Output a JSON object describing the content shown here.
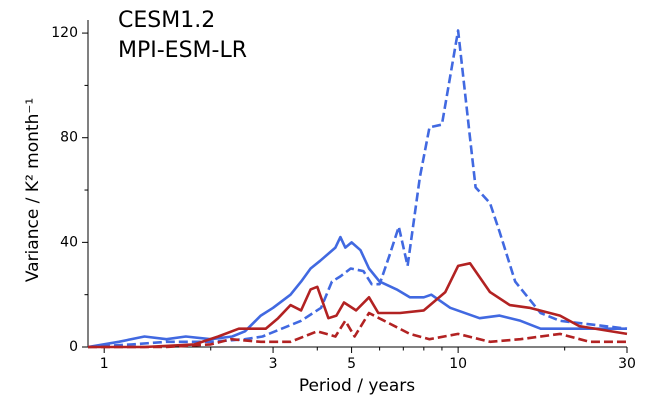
{
  "chart_data": {
    "type": "line",
    "xlabel": "Period / years",
    "ylabel": "Variance / K² month⁻¹",
    "xscale": "log",
    "xlim": [
      0.9,
      30
    ],
    "xticks": [
      1,
      3,
      5,
      10,
      30
    ],
    "xminorticks": [
      2,
      4,
      6,
      7,
      8,
      9,
      20
    ],
    "ylim": [
      0,
      125
    ],
    "yticks": [
      0,
      40,
      80,
      120
    ],
    "yminorticks": [
      20,
      60,
      100
    ],
    "series": [
      {
        "name": "CESM1.2",
        "color": "#4169e1",
        "lines": [
          {
            "dashed": false,
            "x": [
              0.9,
              1.1,
              1.3,
              1.5,
              1.7,
              2.0,
              2.3,
              2.5,
              2.77,
              3.0,
              3.36,
              3.6,
              3.83,
              4.08,
              4.5,
              4.65,
              4.8,
              5.0,
              5.3,
              5.6,
              6.0,
              6.7,
              7.3,
              8.0,
              8.4,
              9.5,
              11.5,
              13.1,
              15.0,
              17.1,
              30
            ],
            "values": [
              0,
              2,
              4,
              3,
              4,
              3,
              4,
              6,
              12,
              15,
              20,
              25,
              30,
              33,
              38,
              42,
              38,
              40,
              37,
              30,
              25,
              22,
              19,
              19,
              20,
              15,
              11,
              12,
              10,
              7,
              7
            ]
          },
          {
            "dashed": true,
            "x": [
              0.9,
              1.2,
              1.5,
              2.0,
              2.5,
              2.8,
              3.6,
              4.1,
              4.4,
              4.65,
              4.97,
              5.4,
              5.7,
              6.0,
              6.4,
              6.8,
              7.2,
              7.8,
              8.3,
              9.0,
              10.0,
              10.8,
              11.2,
              12.3,
              13.1,
              14.5,
              17.1,
              19.4,
              30
            ],
            "values": [
              0,
              1,
              2,
              2,
              3,
              4,
              10,
              15,
              25,
              27,
              30,
              29,
              24,
              24,
              35,
              46,
              31,
              65,
              84,
              85,
              121,
              80,
              61,
              55,
              44,
              25,
              13,
              10,
              7
            ]
          }
        ]
      },
      {
        "name": "MPI-ESM-LR",
        "color": "#b22222",
        "lines": [
          {
            "dashed": false,
            "x": [
              0.9,
              1.3,
              1.8,
              2.1,
              2.4,
              2.86,
              3.1,
              3.36,
              3.6,
              3.83,
              4.0,
              4.3,
              4.53,
              4.76,
              5.15,
              5.6,
              5.95,
              6.85,
              8.0,
              9.2,
              10.0,
              10.8,
              12.3,
              14.0,
              15.9,
              19.4,
              22.0,
              30
            ],
            "values": [
              0,
              0,
              1,
              4,
              7,
              7,
              11,
              16,
              14,
              22,
              23,
              11,
              12,
              17,
              14,
              19,
              13,
              13,
              14,
              21,
              31,
              32,
              21,
              16,
              15,
              12,
              8,
              5
            ]
          },
          {
            "dashed": true,
            "x": [
              0.9,
              1.5,
              2.0,
              2.28,
              2.77,
              3.36,
              4.0,
              4.5,
              4.8,
              5.1,
              5.6,
              6.4,
              7.3,
              8.3,
              10.0,
              12.3,
              15.0,
              19.4,
              23.5,
              30
            ],
            "values": [
              0,
              0,
              1,
              3,
              2,
              2,
              6,
              4,
              10,
              4,
              13,
              9,
              5,
              3,
              5,
              2,
              3,
              5,
              2,
              2
            ]
          }
        ]
      }
    ]
  }
}
